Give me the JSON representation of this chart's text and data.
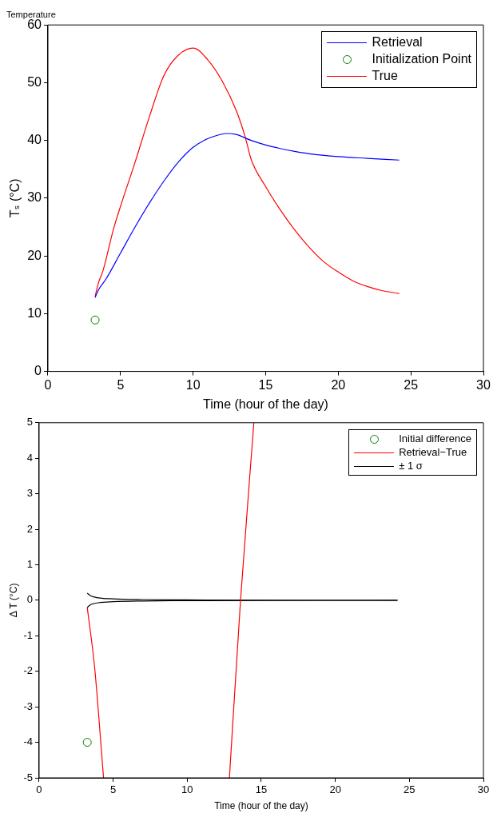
{
  "chart_data": [
    {
      "type": "line",
      "title": "Temperature",
      "xlabel": "Time (hour of the day)",
      "ylabel": "Tₛ (°C)",
      "xlim": [
        0,
        30
      ],
      "xticks": [
        0,
        5,
        10,
        15,
        20,
        25,
        30
      ],
      "ylim": [
        0,
        60
      ],
      "yticks": [
        0,
        10,
        20,
        30,
        40,
        50,
        60
      ],
      "legend": "top right",
      "series": [
        {
          "name": "Retrieval",
          "color": "#0000ff",
          "x": [
            3.25,
            3.5,
            4,
            5,
            6,
            7,
            8,
            9,
            10,
            11,
            12,
            12.3,
            13,
            14,
            15,
            16,
            17,
            18,
            20,
            22,
            24.2
          ],
          "values": [
            12.8,
            14.2,
            16,
            20.5,
            25,
            29.2,
            33,
            36.3,
            38.8,
            40.3,
            41.1,
            41.2,
            41,
            40,
            39.2,
            38.6,
            38.1,
            37.7,
            37.2,
            36.9,
            36.6
          ]
        },
        {
          "name": "Initialization Point",
          "type": "scatter",
          "marker": "circle",
          "color": "#008000",
          "x": [
            3.25
          ],
          "values": [
            8.9
          ]
        },
        {
          "name": "True",
          "color": "#ff0000",
          "x": [
            3.25,
            3.5,
            3.8,
            4.5,
            5,
            6,
            7,
            8,
            9,
            10,
            11,
            12,
            13,
            13.6,
            14,
            15,
            16,
            17,
            18,
            19,
            20,
            21,
            22,
            23,
            24.2
          ],
          "values": [
            13,
            15.5,
            17.5,
            24.5,
            28.6,
            36.2,
            44.2,
            51.3,
            54.8,
            56,
            54,
            50.3,
            45,
            40.5,
            36.7,
            32,
            28,
            24.5,
            21.5,
            19,
            17.2,
            15.7,
            14.7,
            14,
            13.5
          ]
        }
      ]
    },
    {
      "type": "line",
      "xlabel": "Time (hour of the day)",
      "ylabel": "Δ T (°C)",
      "xlim": [
        0,
        30
      ],
      "xticks": [
        0,
        5,
        10,
        15,
        20,
        25,
        30
      ],
      "ylim": [
        -5,
        5
      ],
      "yticks": [
        -5,
        -4,
        -3,
        -2,
        -1,
        0,
        1,
        2,
        3,
        4,
        5
      ],
      "legend": "top right",
      "series": [
        {
          "name": "Initial difference",
          "type": "scatter",
          "marker": "circle",
          "color": "#008000",
          "x": [
            3.25
          ],
          "values": [
            -4
          ]
        },
        {
          "name": "Retrieval−True",
          "color": "#ff0000",
          "x": [
            3.25,
            3.75,
            4.35,
            8,
            12.85,
            13.6,
            14.5
          ],
          "values": [
            -0.2,
            -1.9,
            -5,
            null,
            -5,
            0,
            5
          ]
        },
        {
          "name": "± 1 σ",
          "color": "#000000",
          "x": [
            3.25,
            3.5,
            4,
            5,
            7,
            10,
            24.2
          ],
          "values": [
            0.2,
            0.12,
            0.07,
            0.04,
            0.02,
            0.01,
            0
          ]
        },
        {
          "color": "#000000",
          "x": [
            3.25,
            3.5,
            4,
            5,
            7,
            10,
            24.2
          ],
          "values": [
            -0.2,
            -0.12,
            -0.07,
            -0.04,
            -0.02,
            -0.01,
            0
          ]
        }
      ]
    }
  ]
}
